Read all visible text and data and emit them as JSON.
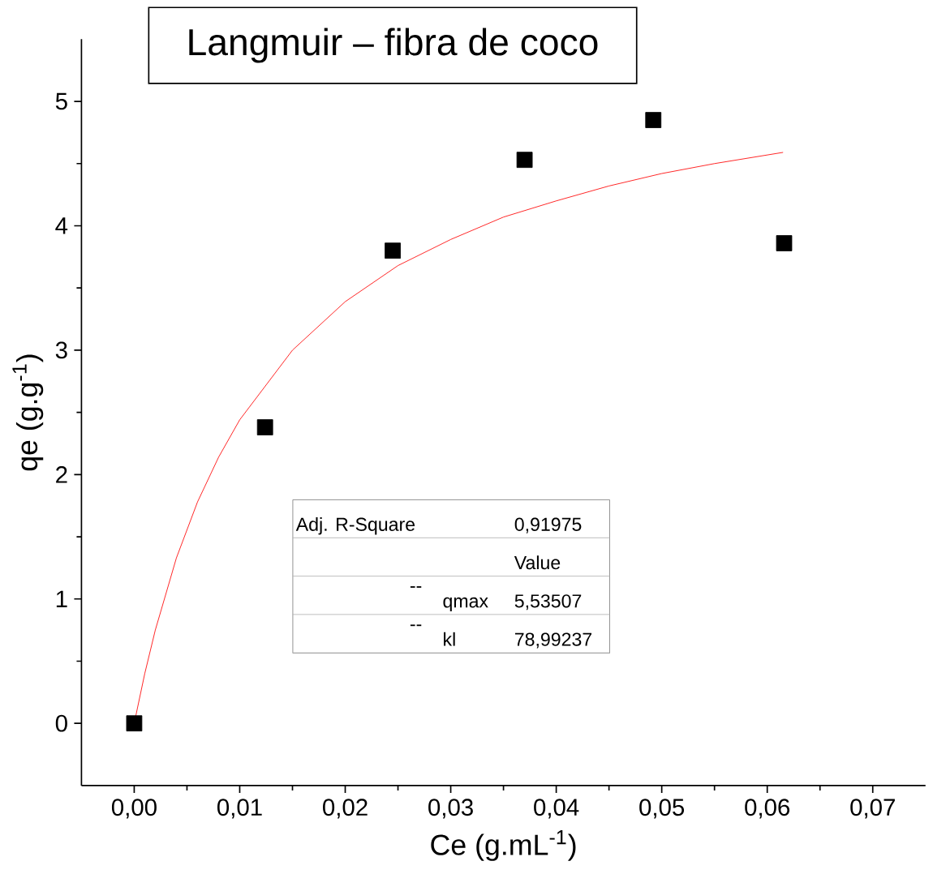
{
  "chart_data": {
    "type": "scatter",
    "title": "Langmuir – fibra de coco",
    "xlabel": "Ce (g.mL$^{-1}$)",
    "ylabel": "qe (g.g$^{-1}$)",
    "xlim": [
      -0.005,
      0.075
    ],
    "ylim": [
      -0.5,
      5.5
    ],
    "xticks": [
      {
        "value": 0,
        "label": "0,00"
      },
      {
        "value": 0.01,
        "label": "0,01"
      },
      {
        "value": 0.02,
        "label": "0,02"
      },
      {
        "value": 0.03,
        "label": "0,03"
      },
      {
        "value": 0.04,
        "label": "0,04"
      },
      {
        "value": 0.05,
        "label": "0,05"
      },
      {
        "value": 0.06,
        "label": "0,06"
      },
      {
        "value": 0.07,
        "label": "0,07"
      }
    ],
    "yticks": [
      0,
      1,
      2,
      3,
      4,
      5
    ],
    "series": [
      {
        "color": "#000000",
        "marker": "square",
        "x": [
          0,
          0.0124,
          0.0245,
          0.037,
          0.0492,
          0.0616
        ],
        "values": [
          0,
          2.38,
          3.8,
          4.53,
          4.85,
          3.86
        ]
      },
      {
        "type": "line",
        "color": "#ff0000",
        "marker": "none",
        "line_style": "solid",
        "x": [
          0,
          0.001,
          0.002,
          0.004,
          0.006,
          0.008,
          0.01,
          0.015,
          0.02,
          0.025,
          0.03,
          0.035,
          0.04,
          0.045,
          0.05,
          0.055,
          0.0615
        ],
        "values": [
          0,
          0.4,
          0.75,
          1.33,
          1.78,
          2.14,
          2.44,
          3.0,
          3.39,
          3.68,
          3.89,
          4.07,
          4.2,
          4.32,
          4.42,
          4.5,
          4.59
        ]
      }
    ],
    "annotations": [
      "Adj. R-Square",
      "0,91975",
      "Value",
      "--",
      "qmax",
      "5,53507",
      "--",
      "kl",
      "78,99237"
    ],
    "grid": false
  }
}
